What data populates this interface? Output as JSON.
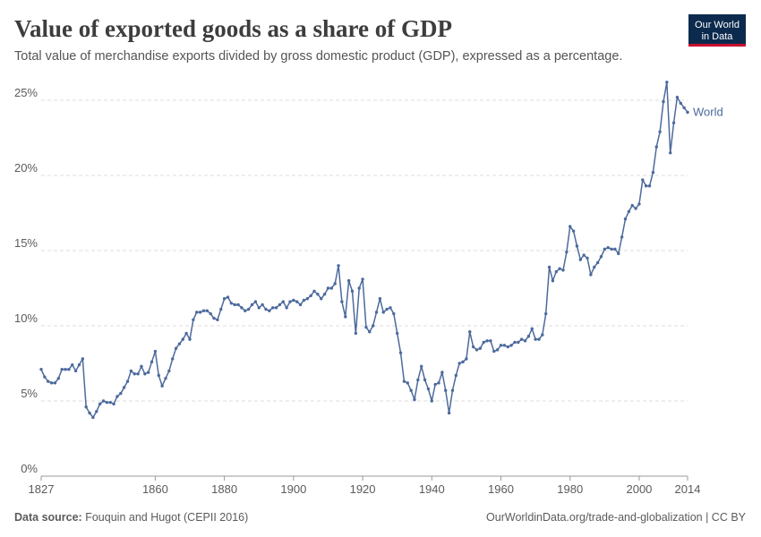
{
  "chart_data": {
    "type": "line",
    "title": "Value of exported goods as a share of GDP",
    "subtitle": "Total value of merchandise exports divided by gross domestic product (GDP), expressed as a percentage.",
    "logo": [
      "Our World",
      "in Data"
    ],
    "source_label": "Data source:",
    "source": "Fouquin and Hugot (CEPII 2016)",
    "url": "OurWorldinData.org/trade-and-globalization | CC BY",
    "x": [
      1827,
      1828,
      1829,
      1830,
      1831,
      1832,
      1833,
      1834,
      1835,
      1836,
      1837,
      1838,
      1839,
      1840,
      1841,
      1842,
      1843,
      1844,
      1845,
      1846,
      1847,
      1848,
      1849,
      1850,
      1851,
      1852,
      1853,
      1854,
      1855,
      1856,
      1857,
      1858,
      1859,
      1860,
      1861,
      1862,
      1863,
      1864,
      1865,
      1866,
      1867,
      1868,
      1869,
      1870,
      1871,
      1872,
      1873,
      1874,
      1875,
      1876,
      1877,
      1878,
      1879,
      1880,
      1881,
      1882,
      1883,
      1884,
      1885,
      1886,
      1887,
      1888,
      1889,
      1890,
      1891,
      1892,
      1893,
      1894,
      1895,
      1896,
      1897,
      1898,
      1899,
      1900,
      1901,
      1902,
      1903,
      1904,
      1905,
      1906,
      1907,
      1908,
      1909,
      1910,
      1911,
      1912,
      1913,
      1914,
      1915,
      1916,
      1917,
      1918,
      1919,
      1920,
      1921,
      1922,
      1923,
      1924,
      1925,
      1926,
      1927,
      1928,
      1929,
      1930,
      1931,
      1932,
      1933,
      1934,
      1935,
      1936,
      1937,
      1938,
      1939,
      1940,
      1941,
      1942,
      1943,
      1944,
      1945,
      1946,
      1947,
      1948,
      1949,
      1950,
      1951,
      1952,
      1953,
      1954,
      1955,
      1956,
      1957,
      1958,
      1959,
      1960,
      1961,
      1962,
      1963,
      1964,
      1965,
      1966,
      1967,
      1968,
      1969,
      1970,
      1971,
      1972,
      1973,
      1974,
      1975,
      1976,
      1977,
      1978,
      1979,
      1980,
      1981,
      1982,
      1983,
      1984,
      1985,
      1986,
      1987,
      1988,
      1989,
      1990,
      1991,
      1992,
      1993,
      1994,
      1995,
      1996,
      1997,
      1998,
      1999,
      2000,
      2001,
      2002,
      2003,
      2004,
      2005,
      2006,
      2007,
      2008,
      2009,
      2010,
      2011,
      2012,
      2013,
      2014
    ],
    "series": [
      {
        "name": "World",
        "color": "#4c6a9c",
        "values": [
          7.1,
          6.6,
          6.3,
          6.2,
          6.2,
          6.5,
          7.1,
          7.1,
          7.1,
          7.4,
          7.0,
          7.4,
          7.8,
          4.6,
          4.2,
          3.9,
          4.3,
          4.8,
          5.0,
          4.9,
          4.9,
          4.8,
          5.3,
          5.5,
          5.9,
          6.3,
          7.0,
          6.8,
          6.8,
          7.3,
          6.8,
          6.9,
          7.6,
          8.3,
          6.7,
          6.0,
          6.5,
          7.0,
          7.8,
          8.5,
          8.8,
          9.1,
          9.5,
          9.1,
          10.4,
          10.9,
          10.9,
          11.0,
          11.0,
          10.8,
          10.5,
          10.4,
          11.1,
          11.8,
          11.9,
          11.5,
          11.4,
          11.4,
          11.2,
          11.0,
          11.1,
          11.4,
          11.6,
          11.2,
          11.4,
          11.1,
          11.0,
          11.2,
          11.2,
          11.4,
          11.6,
          11.2,
          11.6,
          11.7,
          11.6,
          11.4,
          11.7,
          11.8,
          12.0,
          12.3,
          12.1,
          11.8,
          12.1,
          12.5,
          12.5,
          12.8,
          14.0,
          11.6,
          10.6,
          13.0,
          12.3,
          9.5,
          12.5,
          13.1,
          9.9,
          9.6,
          10.0,
          10.9,
          11.8,
          10.9,
          11.1,
          11.2,
          10.8,
          9.5,
          8.2,
          6.3,
          6.2,
          5.7,
          5.1,
          6.4,
          7.3,
          6.4,
          5.8,
          5.0,
          6.1,
          6.2,
          6.9,
          5.7,
          4.2,
          5.7,
          6.7,
          7.5,
          7.6,
          7.8,
          9.6,
          8.6,
          8.4,
          8.5,
          8.9,
          9.0,
          9.0,
          8.3,
          8.4,
          8.7,
          8.7,
          8.6,
          8.7,
          8.9,
          8.9,
          9.1,
          9.0,
          9.3,
          9.8,
          9.1,
          9.1,
          9.4,
          10.8,
          13.9,
          13.0,
          13.6,
          13.8,
          13.7,
          14.9,
          16.6,
          16.3,
          15.3,
          14.4,
          14.7,
          14.5,
          13.4,
          13.9,
          14.2,
          14.6,
          15.1,
          15.2,
          15.1,
          15.1,
          14.8,
          15.9,
          17.1,
          17.6,
          18.0,
          17.8,
          18.1,
          19.7,
          19.3,
          19.3,
          20.2,
          21.9,
          22.9,
          24.9,
          26.2,
          21.5,
          23.5,
          25.2,
          24.8,
          24.5,
          24.2
        ]
      }
    ],
    "xlim": [
      1827,
      2014
    ],
    "xticks": [
      1827,
      1860,
      1880,
      1900,
      1920,
      1940,
      1960,
      1980,
      2000,
      2014
    ],
    "ylim": [
      0,
      26.5
    ],
    "yticks": [
      {
        "value": 0,
        "label": "0%"
      },
      {
        "value": 5,
        "label": "5%"
      },
      {
        "value": 10,
        "label": "10%"
      },
      {
        "value": 15,
        "label": "15%"
      },
      {
        "value": 20,
        "label": "20%"
      },
      {
        "value": 25,
        "label": "25%"
      }
    ],
    "grid": true
  }
}
